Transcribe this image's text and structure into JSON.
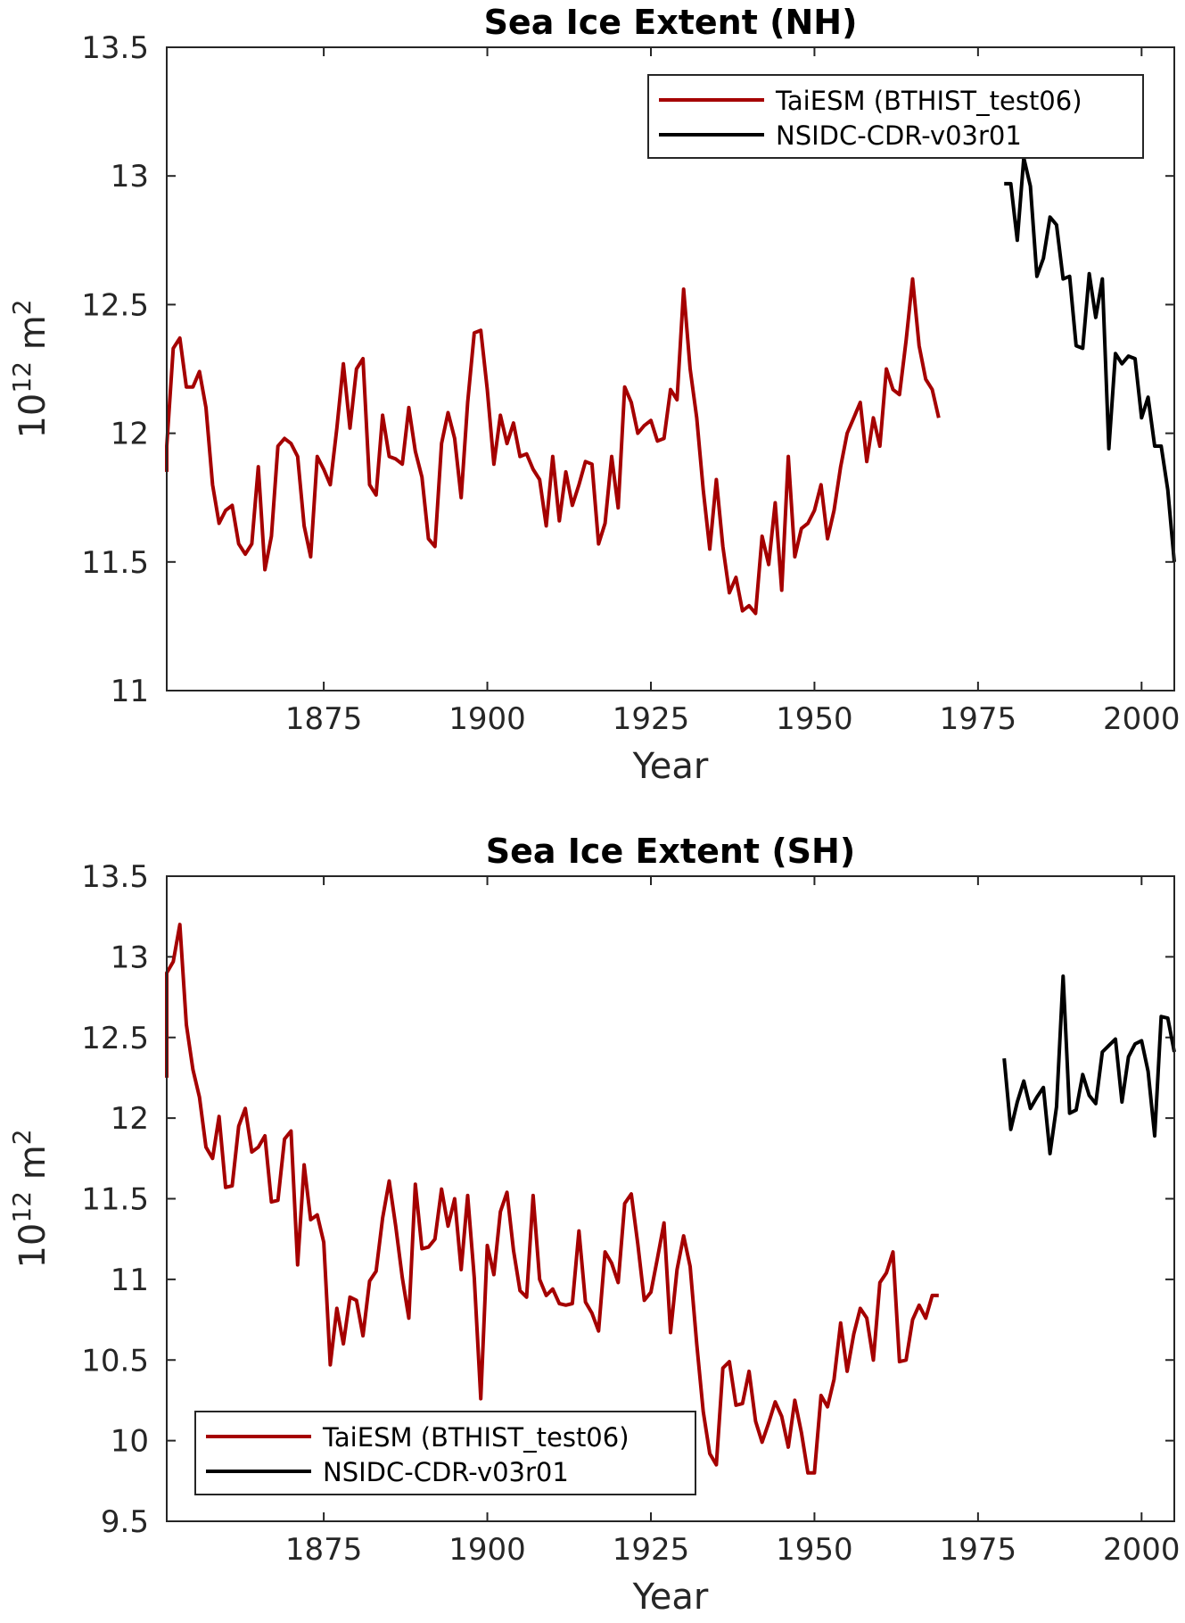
{
  "chart_data": [
    {
      "type": "line",
      "title": "Sea Ice Extent (NH)",
      "xlabel": "Year",
      "ylabel_base": "10",
      "ylabel_exp": "12",
      "ylabel_unit": "m",
      "ylabel_unit_exp": "2",
      "xlim": [
        1851,
        2005
      ],
      "ylim": [
        11,
        13.5
      ],
      "xticks": [
        "1875",
        "1900",
        "1925",
        "1950",
        "1975",
        "2000"
      ],
      "yticks": [
        "11",
        "11.5",
        "12",
        "12.5",
        "13",
        "13.5"
      ],
      "legend_position": "top-right",
      "colors": {
        "model": "#a50000",
        "obs": "#000000"
      },
      "series": [
        {
          "name": "TaiESM (BTHIST_test06)",
          "x_start": 1850,
          "values": [
            11.85,
            11.95,
            12.33,
            12.37,
            12.18,
            12.18,
            12.24,
            12.1,
            11.8,
            11.65,
            11.7,
            11.72,
            11.57,
            11.53,
            11.57,
            11.87,
            11.47,
            11.6,
            11.95,
            11.98,
            11.96,
            11.91,
            11.64,
            11.52,
            11.91,
            11.86,
            11.8,
            12.02,
            12.27,
            12.02,
            12.25,
            12.29,
            11.8,
            11.76,
            12.07,
            11.91,
            11.9,
            11.88,
            12.1,
            11.93,
            11.83,
            11.59,
            11.56,
            11.96,
            12.08,
            11.98,
            11.75,
            12.12,
            12.39,
            12.4,
            12.17,
            11.88,
            12.07,
            11.96,
            12.04,
            11.91,
            11.92,
            11.86,
            11.82,
            11.64,
            11.91,
            11.66,
            11.85,
            11.72,
            11.8,
            11.89,
            11.88,
            11.57,
            11.65,
            11.91,
            11.71,
            12.18,
            12.12,
            12.0,
            12.03,
            12.05,
            11.97,
            11.98,
            12.17,
            12.13,
            12.56,
            12.25,
            12.06,
            11.78,
            11.55,
            11.82,
            11.56,
            11.38,
            11.44,
            11.31,
            11.33,
            11.3,
            11.6,
            11.49,
            11.73,
            11.39,
            11.91,
            11.52,
            11.63,
            11.65,
            11.7,
            11.8,
            11.59,
            11.7,
            11.87,
            12.0,
            12.06,
            12.12,
            11.89,
            12.06,
            11.95,
            12.25,
            12.17,
            12.15,
            12.36,
            12.6,
            12.34,
            12.21,
            12.17,
            12.06
          ]
        },
        {
          "name": "NSIDC-CDR-v03r01",
          "x_start": 1979,
          "values": [
            12.97,
            12.97,
            12.75,
            13.07,
            12.96,
            12.61,
            12.68,
            12.84,
            12.81,
            12.6,
            12.61,
            12.34,
            12.33,
            12.62,
            12.45,
            12.6,
            11.94,
            12.31,
            12.27,
            12.3,
            12.29,
            12.06,
            12.14,
            11.95,
            11.95,
            11.78,
            11.5
          ]
        }
      ]
    },
    {
      "type": "line",
      "title": "Sea Ice Extent (SH)",
      "xlabel": "Year",
      "ylabel_base": "10",
      "ylabel_exp": "12",
      "ylabel_unit": "m",
      "ylabel_unit_exp": "2",
      "xlim": [
        1851,
        2005
      ],
      "ylim": [
        9.5,
        13.5
      ],
      "xticks": [
        "1875",
        "1900",
        "1925",
        "1950",
        "1975",
        "2000"
      ],
      "yticks": [
        "9.5",
        "10",
        "10.5",
        "11",
        "11.5",
        "12",
        "12.5",
        "13",
        "13.5"
      ],
      "legend_position": "bottom-left",
      "colors": {
        "model": "#a50000",
        "obs": "#000000"
      },
      "series": [
        {
          "name": "TaiESM (BTHIST_test06)",
          "x_start": 1850,
          "values": [
            12.25,
            12.9,
            12.97,
            13.2,
            12.58,
            12.3,
            12.13,
            11.82,
            11.75,
            12.01,
            11.57,
            11.58,
            11.95,
            12.06,
            11.79,
            11.82,
            11.89,
            11.48,
            11.49,
            11.87,
            11.92,
            11.09,
            11.71,
            11.37,
            11.4,
            11.23,
            10.47,
            10.82,
            10.6,
            10.89,
            10.87,
            10.65,
            10.99,
            11.05,
            11.38,
            11.61,
            11.33,
            11.01,
            10.76,
            11.59,
            11.19,
            11.2,
            11.25,
            11.56,
            11.33,
            11.5,
            11.06,
            11.52,
            11.01,
            10.26,
            11.21,
            11.03,
            11.42,
            11.54,
            11.18,
            10.93,
            10.89,
            11.52,
            11.0,
            10.9,
            10.94,
            10.85,
            10.84,
            10.85,
            11.3,
            10.86,
            10.79,
            10.68,
            11.17,
            11.1,
            10.98,
            11.47,
            11.53,
            11.22,
            10.87,
            10.92,
            11.13,
            11.35,
            10.67,
            11.06,
            11.27,
            11.08,
            10.6,
            10.18,
            9.92,
            9.85,
            10.45,
            10.49,
            10.22,
            10.23,
            10.43,
            10.12,
            9.99,
            10.11,
            10.24,
            10.15,
            9.96,
            10.25,
            10.05,
            9.8,
            9.8,
            10.28,
            10.21,
            10.38,
            10.73,
            10.43,
            10.66,
            10.82,
            10.76,
            10.5,
            10.98,
            11.04,
            11.17,
            10.49,
            10.5,
            10.75,
            10.84,
            10.76,
            10.9,
            10.9
          ]
        },
        {
          "name": "NSIDC-CDR-v03r01",
          "x_start": 1979,
          "values": [
            12.37,
            11.93,
            12.1,
            12.23,
            12.06,
            12.13,
            12.19,
            11.78,
            12.07,
            12.88,
            12.03,
            12.05,
            12.27,
            12.14,
            12.09,
            12.41,
            12.45,
            12.49,
            12.1,
            12.38,
            12.46,
            12.48,
            12.29,
            11.89,
            12.63,
            12.62,
            12.41
          ]
        }
      ]
    }
  ]
}
